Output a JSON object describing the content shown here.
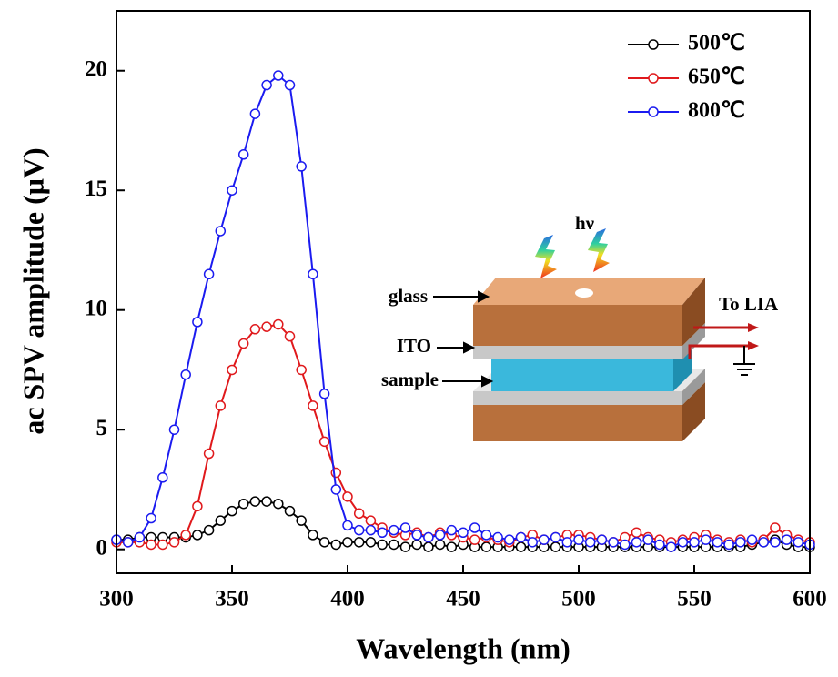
{
  "chart_data": {
    "type": "line",
    "xlabel": "Wavelength (nm)",
    "ylabel": "ac SPV amplitude (μV)",
    "xlim": [
      300,
      600
    ],
    "ylim": [
      -1,
      22.5
    ],
    "xticks": [
      300,
      350,
      400,
      450,
      500,
      550,
      600
    ],
    "yticks": [
      0,
      5,
      10,
      15,
      20
    ],
    "legend": "upper right",
    "annotations": [
      "hν",
      "glass",
      "ITO",
      "sample",
      "To LIA"
    ],
    "x": [
      300,
      305,
      310,
      315,
      320,
      325,
      330,
      335,
      340,
      345,
      350,
      355,
      360,
      365,
      370,
      375,
      380,
      385,
      390,
      395,
      400,
      405,
      410,
      415,
      420,
      425,
      430,
      435,
      440,
      445,
      450,
      455,
      460,
      465,
      470,
      475,
      480,
      485,
      490,
      495,
      500,
      505,
      510,
      515,
      520,
      525,
      530,
      535,
      540,
      545,
      550,
      555,
      560,
      565,
      570,
      575,
      580,
      585,
      590,
      595,
      600
    ],
    "series": [
      {
        "name": "500℃",
        "color": "#000000",
        "values": [
          0.4,
          0.4,
          0.5,
          0.5,
          0.5,
          0.5,
          0.5,
          0.6,
          0.8,
          1.2,
          1.6,
          1.9,
          2.0,
          2.0,
          1.9,
          1.6,
          1.2,
          0.6,
          0.3,
          0.2,
          0.3,
          0.3,
          0.3,
          0.2,
          0.2,
          0.1,
          0.2,
          0.1,
          0.2,
          0.1,
          0.2,
          0.1,
          0.1,
          0.1,
          0.1,
          0.1,
          0.1,
          0.1,
          0.1,
          0.1,
          0.1,
          0.1,
          0.1,
          0.1,
          0.1,
          0.1,
          0.1,
          0.1,
          0.1,
          0.1,
          0.1,
          0.1,
          0.1,
          0.1,
          0.1,
          0.2,
          0.3,
          0.4,
          0.2,
          0.1,
          0.1
        ]
      },
      {
        "name": "650℃",
        "color": "#e0191c",
        "values": [
          0.3,
          0.3,
          0.3,
          0.2,
          0.2,
          0.3,
          0.6,
          1.8,
          4.0,
          6.0,
          7.5,
          8.6,
          9.2,
          9.3,
          9.4,
          8.9,
          7.5,
          6.0,
          4.5,
          3.2,
          2.2,
          1.5,
          1.2,
          0.9,
          0.7,
          0.6,
          0.7,
          0.5,
          0.7,
          0.6,
          0.5,
          0.4,
          0.5,
          0.4,
          0.3,
          0.5,
          0.6,
          0.4,
          0.5,
          0.6,
          0.6,
          0.5,
          0.4,
          0.3,
          0.5,
          0.7,
          0.5,
          0.4,
          0.3,
          0.4,
          0.5,
          0.6,
          0.4,
          0.3,
          0.4,
          0.3,
          0.4,
          0.9,
          0.6,
          0.4,
          0.3
        ]
      },
      {
        "name": "800℃",
        "color": "#1b1bf0",
        "values": [
          0.4,
          0.3,
          0.5,
          1.3,
          3.0,
          5.0,
          7.3,
          9.5,
          11.5,
          13.3,
          15.0,
          16.5,
          18.2,
          19.4,
          19.8,
          19.4,
          16.0,
          11.5,
          6.5,
          2.5,
          1.0,
          0.8,
          0.8,
          0.7,
          0.8,
          0.9,
          0.6,
          0.5,
          0.6,
          0.8,
          0.7,
          0.9,
          0.6,
          0.5,
          0.4,
          0.5,
          0.3,
          0.4,
          0.5,
          0.3,
          0.4,
          0.3,
          0.4,
          0.3,
          0.2,
          0.3,
          0.4,
          0.2,
          0.1,
          0.3,
          0.3,
          0.4,
          0.3,
          0.2,
          0.3,
          0.4,
          0.3,
          0.3,
          0.4,
          0.3,
          0.2
        ]
      }
    ]
  }
}
